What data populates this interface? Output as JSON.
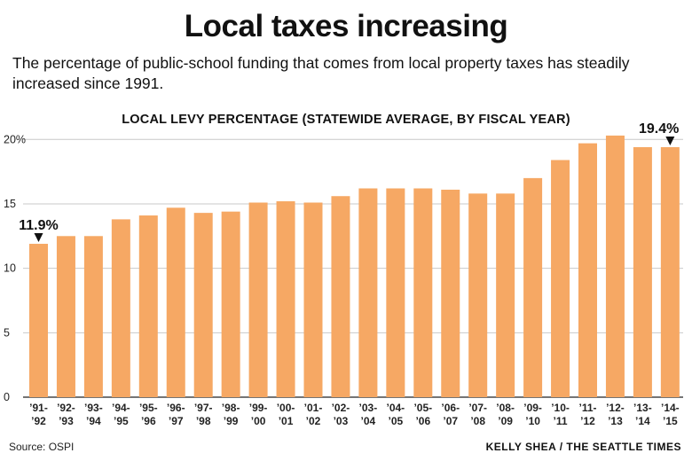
{
  "header": {
    "title": "Local taxes increasing",
    "subtitle": "The percentage of public-school funding that comes from local property taxes has steadily increased since 1991."
  },
  "chart_data": {
    "type": "bar",
    "title": "LOCAL LEVY PERCENTAGE (STATEWIDE AVERAGE, BY FISCAL YEAR)",
    "categories": [
      [
        "’91-",
        "’92"
      ],
      [
        "’92-",
        "’93"
      ],
      [
        "’93-",
        "’94"
      ],
      [
        "’94-",
        "’95"
      ],
      [
        "’95-",
        "’96"
      ],
      [
        "’96-",
        "’97"
      ],
      [
        "’97-",
        "’98"
      ],
      [
        "’98-",
        "’99"
      ],
      [
        "’99-",
        "’00"
      ],
      [
        "’00-",
        "’01"
      ],
      [
        "’01-",
        "’02"
      ],
      [
        "’02-",
        "’03"
      ],
      [
        "’03-",
        "’04"
      ],
      [
        "’04-",
        "’05"
      ],
      [
        "’05-",
        "’06"
      ],
      [
        "’06-",
        "’07"
      ],
      [
        "’07-",
        "’08"
      ],
      [
        "’08-",
        "’09"
      ],
      [
        "’09-",
        "’10"
      ],
      [
        "’10-",
        "’11"
      ],
      [
        "’11-",
        "’12"
      ],
      [
        "’12-",
        "’13"
      ],
      [
        "’13-",
        "’14"
      ],
      [
        "’14-",
        "’15"
      ]
    ],
    "values": [
      11.9,
      12.5,
      12.5,
      13.8,
      14.1,
      14.7,
      14.3,
      14.4,
      15.1,
      15.2,
      15.1,
      15.6,
      16.2,
      16.2,
      16.2,
      16.1,
      15.8,
      15.8,
      17.0,
      18.4,
      19.7,
      20.3,
      19.4,
      19.4
    ],
    "yticks": [
      0,
      5,
      10,
      15,
      20
    ],
    "ytick_labels": [
      "0",
      "5",
      "10",
      "15",
      "20%"
    ],
    "ylim": [
      0,
      20.5
    ],
    "grid": true,
    "bar_color": "#f6a864",
    "annotations": [
      {
        "index": 0,
        "text": "11.9%"
      },
      {
        "index": 23,
        "text": "19.4%"
      }
    ]
  },
  "footer": {
    "source": "Source: OSPI",
    "credit": "KELLY SHEA / THE SEATTLE TIMES"
  }
}
